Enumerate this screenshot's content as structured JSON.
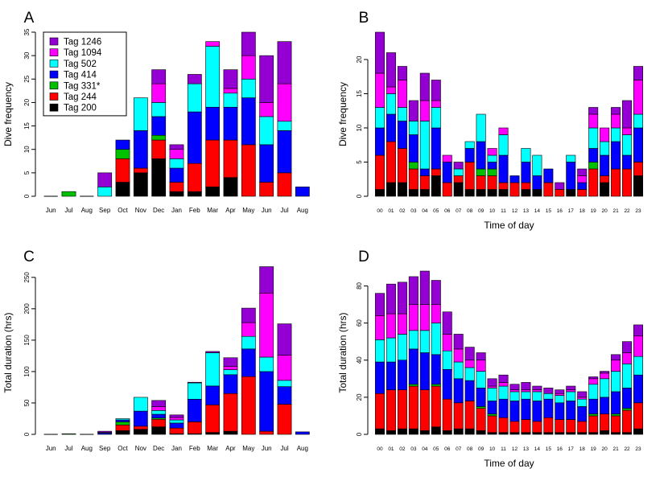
{
  "colors": {
    "Tag 1246": "#9400d3",
    "Tag 1094": "#ff00ff",
    "Tag 502": "#00ffff",
    "Tag 414": "#0000ff",
    "Tag 331*": "#00c000",
    "Tag 244": "#ff0000",
    "Tag 200": "#000000"
  },
  "legend": [
    "Tag 1246",
    "Tag 1094",
    "Tag 502",
    "Tag 414",
    "Tag 331*",
    "Tag 244",
    "Tag 200"
  ],
  "chart_data": [
    {
      "panel": "A",
      "type": "bar",
      "stacked": true,
      "ylabel": "Dive frequency",
      "xlabel": "",
      "ylim": [
        0,
        35
      ],
      "yticks": [
        0,
        5,
        10,
        15,
        20,
        25,
        30,
        35
      ],
      "categories": [
        "Jun",
        "Jul",
        "Aug",
        "Sep",
        "Oct",
        "Nov",
        "Dec",
        "Jan",
        "Feb",
        "Mar",
        "Apr",
        "May",
        "Jun",
        "Jul",
        "Aug"
      ],
      "legend_position": "top-left",
      "series": [
        {
          "name": "Tag 200",
          "values": [
            0,
            0,
            0,
            0,
            3,
            5,
            8,
            1,
            1,
            2,
            4,
            0,
            0,
            0,
            0
          ]
        },
        {
          "name": "Tag 244",
          "values": [
            0,
            0,
            0,
            0,
            5,
            1,
            4,
            2,
            6,
            10,
            8,
            11,
            3,
            5,
            0
          ]
        },
        {
          "name": "Tag 331*",
          "values": [
            0,
            1,
            0,
            0,
            2,
            0,
            1,
            0,
            0,
            0,
            0,
            0,
            0,
            0,
            0
          ]
        },
        {
          "name": "Tag 414",
          "values": [
            0,
            0,
            0,
            0,
            2,
            8,
            4,
            3,
            11,
            7,
            7,
            10,
            8,
            9,
            2
          ]
        },
        {
          "name": "Tag 502",
          "values": [
            0,
            0,
            0,
            2,
            0,
            7,
            3,
            2,
            6,
            13,
            3,
            4,
            6,
            2,
            0
          ]
        },
        {
          "name": "Tag 1094",
          "values": [
            0,
            0,
            0,
            0,
            0,
            0,
            4,
            2,
            0,
            1,
            1,
            5,
            3,
            8,
            0
          ]
        },
        {
          "name": "Tag 1246",
          "values": [
            0,
            0,
            0,
            3,
            0,
            0,
            3,
            1,
            2,
            0,
            4,
            5,
            10,
            9,
            0
          ]
        }
      ]
    },
    {
      "panel": "B",
      "type": "bar",
      "stacked": true,
      "ylabel": "Dive frequency",
      "xlabel": "Time of day",
      "ylim": [
        0,
        24
      ],
      "yticks": [
        0,
        5,
        10,
        15,
        20
      ],
      "categories": [
        "00",
        "01",
        "02",
        "03",
        "04",
        "05",
        "06",
        "07",
        "08",
        "09",
        "10",
        "11",
        "12",
        "13",
        "14",
        "15",
        "16",
        "17",
        "18",
        "19",
        "20",
        "21",
        "22",
        "23"
      ],
      "series": [
        {
          "name": "Tag 200",
          "values": [
            1,
            2,
            2,
            1,
            1,
            3,
            0,
            2,
            1,
            1,
            1,
            1,
            0,
            1,
            1,
            0,
            0,
            1,
            0,
            0,
            2,
            0,
            0,
            3
          ]
        },
        {
          "name": "Tag 244",
          "values": [
            5,
            6,
            5,
            3,
            2,
            1,
            2,
            1,
            4,
            2,
            2,
            1,
            2,
            1,
            0,
            2,
            1,
            0,
            1,
            4,
            1,
            4,
            4,
            2
          ]
        },
        {
          "name": "Tag 331*",
          "values": [
            0,
            0,
            0,
            1,
            0,
            0,
            0,
            0,
            0,
            1,
            1,
            0,
            0,
            0,
            0,
            0,
            0,
            0,
            0,
            1,
            0,
            0,
            0,
            0
          ]
        },
        {
          "name": "Tag 414",
          "values": [
            4,
            4,
            4,
            4,
            1,
            6,
            3,
            0,
            2,
            4,
            1,
            4,
            1,
            3,
            2,
            2,
            0,
            4,
            1,
            2,
            3,
            4,
            2,
            5
          ]
        },
        {
          "name": "Tag 502",
          "values": [
            3,
            3,
            2,
            2,
            7,
            3,
            0,
            1,
            1,
            4,
            1,
            3,
            0,
            2,
            3,
            0,
            0,
            1,
            0,
            3,
            2,
            2,
            3,
            2
          ]
        },
        {
          "name": "Tag 1094",
          "values": [
            5,
            1,
            4,
            0,
            3,
            1,
            1,
            0,
            0,
            0,
            1,
            1,
            0,
            0,
            0,
            0,
            0,
            0,
            1,
            2,
            2,
            2,
            1,
            5
          ]
        },
        {
          "name": "Tag 1246",
          "values": [
            6,
            5,
            2,
            3,
            4,
            3,
            0,
            1,
            0,
            0,
            0,
            0,
            0,
            0,
            0,
            0,
            1,
            0,
            1,
            1,
            0,
            1,
            4,
            2
          ]
        }
      ]
    },
    {
      "panel": "C",
      "type": "bar",
      "stacked": true,
      "ylabel": "Total duration (hrs)",
      "xlabel": "",
      "ylim": [
        0,
        260
      ],
      "yticks": [
        0,
        50,
        100,
        150,
        200,
        250
      ],
      "categories": [
        "Jun",
        "Jul",
        "Aug",
        "Sep",
        "Oct",
        "Nov",
        "Dec",
        "Jan",
        "Feb",
        "Mar",
        "Apr",
        "May",
        "Jun",
        "Jul",
        "Aug"
      ],
      "series": [
        {
          "name": "Tag 200",
          "values": [
            0,
            0,
            0,
            0,
            6,
            8,
            12,
            1,
            1,
            3,
            5,
            0,
            0,
            0,
            0
          ]
        },
        {
          "name": "Tag 244",
          "values": [
            0,
            0,
            0,
            0,
            9,
            5,
            12,
            9,
            19,
            44,
            60,
            92,
            5,
            48,
            0
          ]
        },
        {
          "name": "Tag 331*",
          "values": [
            0,
            1,
            0,
            0,
            5,
            0,
            2,
            0,
            0,
            0,
            0,
            0,
            0,
            0,
            0
          ]
        },
        {
          "name": "Tag 414",
          "values": [
            0,
            0,
            0,
            2,
            3,
            24,
            6,
            8,
            36,
            30,
            30,
            44,
            95,
            28,
            4
          ]
        },
        {
          "name": "Tag 502",
          "values": [
            0,
            0,
            0,
            1,
            2,
            22,
            6,
            5,
            26,
            53,
            8,
            20,
            23,
            10,
            0
          ]
        },
        {
          "name": "Tag 1094",
          "values": [
            0,
            0,
            0,
            0,
            0,
            0,
            6,
            4,
            0,
            0,
            5,
            22,
            102,
            40,
            0
          ]
        },
        {
          "name": "Tag 1246",
          "values": [
            0,
            0,
            0,
            2,
            0,
            0,
            10,
            4,
            1,
            2,
            14,
            23,
            42,
            50,
            0
          ]
        }
      ]
    },
    {
      "panel": "D",
      "type": "bar",
      "stacked": true,
      "ylabel": "Total duration (hrs)",
      "xlabel": "Time of day",
      "ylim": [
        0,
        88
      ],
      "yticks": [
        0,
        20,
        40,
        60,
        80
      ],
      "categories": [
        "00",
        "01",
        "02",
        "03",
        "04",
        "05",
        "06",
        "07",
        "08",
        "09",
        "10",
        "11",
        "12",
        "13",
        "14",
        "15",
        "16",
        "17",
        "18",
        "19",
        "20",
        "21",
        "22",
        "23"
      ],
      "series": [
        {
          "name": "Tag 200",
          "values": [
            3,
            2,
            3,
            3,
            2,
            4,
            2,
            3,
            3,
            2,
            1,
            1,
            1,
            1,
            1,
            1,
            1,
            1,
            1,
            1,
            2,
            1,
            1,
            3
          ]
        },
        {
          "name": "Tag 244",
          "values": [
            19,
            22,
            21,
            23,
            22,
            22,
            17,
            14,
            15,
            12,
            9,
            8,
            6,
            7,
            6,
            8,
            7,
            7,
            6,
            9,
            9,
            9,
            12,
            14
          ]
        },
        {
          "name": "Tag 331*",
          "values": [
            0,
            0,
            0,
            1,
            0,
            1,
            0,
            0,
            0,
            1,
            1,
            0,
            0,
            0,
            0,
            0,
            0,
            0,
            0,
            1,
            0,
            1,
            1,
            0
          ]
        },
        {
          "name": "Tag 414",
          "values": [
            17,
            15,
            16,
            19,
            20,
            16,
            16,
            13,
            11,
            10,
            7,
            10,
            11,
            11,
            11,
            10,
            9,
            10,
            8,
            8,
            9,
            12,
            11,
            15
          ]
        },
        {
          "name": "Tag 502",
          "values": [
            12,
            13,
            14,
            10,
            12,
            17,
            10,
            9,
            7,
            9,
            7,
            7,
            5,
            4,
            5,
            3,
            4,
            5,
            4,
            8,
            10,
            11,
            13,
            10
          ]
        },
        {
          "name": "Tag 1094",
          "values": [
            13,
            13,
            11,
            14,
            14,
            10,
            9,
            7,
            4,
            6,
            1,
            2,
            1,
            1,
            1,
            0,
            1,
            1,
            1,
            3,
            3,
            6,
            6,
            11
          ]
        },
        {
          "name": "Tag 1246",
          "values": [
            12,
            16,
            17,
            15,
            18,
            13,
            12,
            8,
            7,
            4,
            4,
            4,
            3,
            4,
            2,
            3,
            2,
            2,
            3,
            1,
            1,
            3,
            6,
            6
          ]
        }
      ]
    }
  ]
}
